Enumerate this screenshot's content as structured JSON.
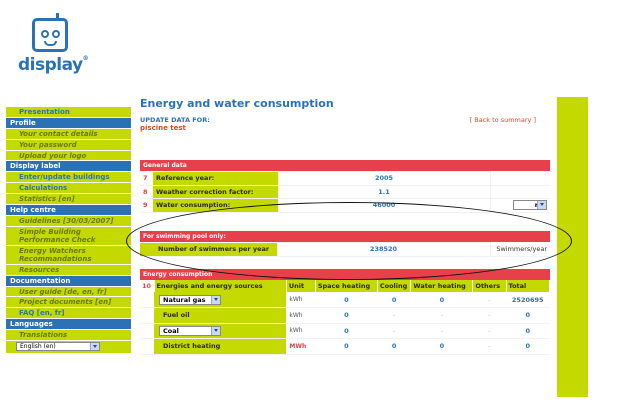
{
  "logo": {
    "text": "display",
    "reg": "®"
  },
  "sidebar": [
    {
      "kind": "item",
      "label": "Presentation",
      "current": true
    },
    {
      "kind": "head",
      "label": "Profile"
    },
    {
      "kind": "item",
      "label": "Your contact details"
    },
    {
      "kind": "item",
      "label": "Your password"
    },
    {
      "kind": "item",
      "label": "Upload your logo"
    },
    {
      "kind": "head",
      "label": "Display label"
    },
    {
      "kind": "item",
      "label": "Enter/update buildings",
      "current": true
    },
    {
      "kind": "item",
      "label": "Calculations",
      "current": true
    },
    {
      "kind": "item",
      "label": "Statistics [en]"
    },
    {
      "kind": "head",
      "label": "Help centre"
    },
    {
      "kind": "item",
      "label": "Guidelines [30/03/2007]"
    },
    {
      "kind": "item2",
      "label": "Simple Building Performance Check"
    },
    {
      "kind": "item2",
      "label": "Energy Watchers Recommandations"
    },
    {
      "kind": "item",
      "label": "Resources"
    },
    {
      "kind": "head",
      "label": "Documentation"
    },
    {
      "kind": "item",
      "label": "User guide [de, en, fr]"
    },
    {
      "kind": "item",
      "label": "Project documents [en]"
    },
    {
      "kind": "item",
      "label": "FAQ [en, fr]",
      "current": true
    },
    {
      "kind": "head",
      "label": "Languages"
    },
    {
      "kind": "item",
      "label": "Translations"
    }
  ],
  "language_select": {
    "value": "English (en)"
  },
  "main": {
    "title": "Energy and water consumption",
    "update_label": "UPDATE DATA FOR:",
    "back_link": "[ Back to summary ]",
    "project_name": "piscine test"
  },
  "general": {
    "heading": "General data",
    "rows": [
      {
        "num": "7",
        "label": "Reference year:",
        "value": "2005"
      },
      {
        "num": "8",
        "label": "Weather correction factor:",
        "value": "1.1"
      },
      {
        "num": "9",
        "label": "Water consumption:",
        "value": "46000",
        "unit": "m3"
      }
    ]
  },
  "pool": {
    "heading": "For swimming pool only:",
    "label": "Number of swimmers per year",
    "value": "238520",
    "unit": "Swimmers/year"
  },
  "energy": {
    "heading": "Energy consumption",
    "num": "10",
    "columns": [
      "Energies and energy sources",
      "Unit",
      "Space heating",
      "Cooling",
      "Water heating",
      "Others",
      "Total"
    ],
    "rows": [
      {
        "source": "Natural gas",
        "select": true,
        "unit": "kWh",
        "red": false,
        "vals": [
          "0",
          "0",
          "0",
          "-",
          "2520695"
        ]
      },
      {
        "source": "Fuel oil",
        "select": false,
        "unit": "kWh",
        "red": false,
        "vals": [
          "0",
          "-",
          "-",
          "-",
          "0"
        ]
      },
      {
        "source": "Coal",
        "select": true,
        "unit": "kWh",
        "red": false,
        "vals": [
          "0",
          "-",
          "-",
          "-",
          "0"
        ]
      },
      {
        "source": "District heating",
        "select": false,
        "unit": "MWh",
        "red": true,
        "vals": [
          "0",
          "0",
          "0",
          "-",
          "0"
        ]
      }
    ]
  }
}
